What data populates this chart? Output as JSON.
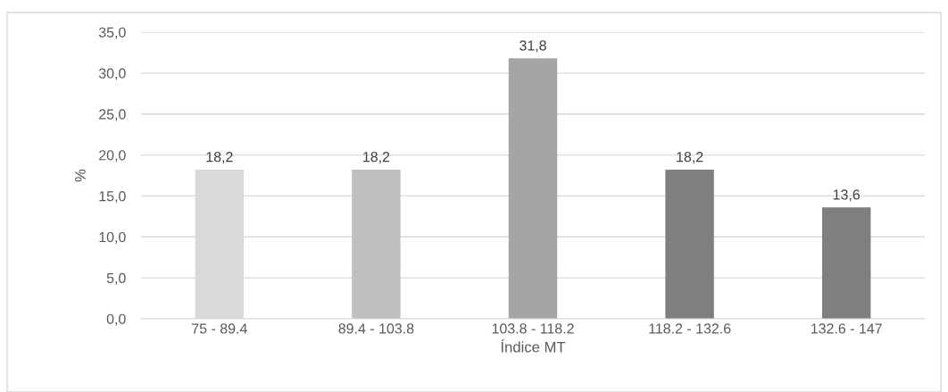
{
  "chart_data": {
    "type": "bar",
    "xlabel": "Índice MT",
    "ylabel": "%",
    "categories": [
      "75 - 89.4",
      "89.4 - 103.8",
      "103.8 - 118.2",
      "118.2 - 132.6",
      "132.6 - 147"
    ],
    "values": [
      18.2,
      18.2,
      31.8,
      18.2,
      13.6
    ],
    "colors": [
      "#d9d9d9",
      "#bfbfbf",
      "#a5a5a5",
      "#7f7f7f",
      "#7f7f7f"
    ],
    "value_labels": [
      "18,2",
      "18,2",
      "31,8",
      "18,2",
      "13,6"
    ],
    "ylim": [
      0,
      35
    ],
    "yticks": [
      {
        "value": 0,
        "label": "0,0"
      },
      {
        "value": 5,
        "label": "5,0"
      },
      {
        "value": 10,
        "label": "10,0"
      },
      {
        "value": 15,
        "label": "15,0"
      },
      {
        "value": 20,
        "label": "20,0"
      },
      {
        "value": 25,
        "label": "25,0"
      },
      {
        "value": 30,
        "label": "30,0"
      },
      {
        "value": 35,
        "label": "35,0"
      }
    ],
    "grid": "y",
    "legend": false
  }
}
